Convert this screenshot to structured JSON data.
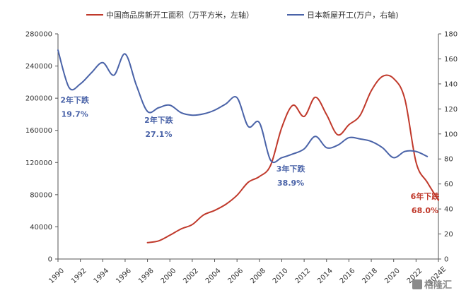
{
  "chart_data": {
    "type": "line",
    "legend": {
      "position": "top",
      "items": [
        {
          "label": "中国商品房新开工面积（万平方米，左轴）",
          "color": "#c0392b"
        },
        {
          "label": "日本新屋开工(万户，右轴)",
          "color": "#4a63a8"
        }
      ]
    },
    "left_axis": {
      "ylim": [
        0,
        280000
      ],
      "ticks": [
        "0",
        "40000",
        "80000",
        "120000",
        "160000",
        "200000",
        "240000",
        "280000"
      ]
    },
    "right_axis": {
      "ylim": [
        0,
        180
      ],
      "ticks": [
        "0",
        "20",
        "40",
        "60",
        "80",
        "100",
        "120",
        "140",
        "160",
        "180"
      ]
    },
    "x_ticks": [
      "1990",
      "1992",
      "1994",
      "1996",
      "1998",
      "2000",
      "2002",
      "2004",
      "2006",
      "2008",
      "2010",
      "2012",
      "2014",
      "2016",
      "2018",
      "2020",
      "2022",
      "2024E"
    ],
    "x_range": [
      1990,
      2024
    ],
    "series": [
      {
        "name": "中国商品房新开工面积（万平方米，左轴）",
        "axis": "left",
        "color": "#c0392b",
        "x": [
          1998,
          1999,
          2000,
          2001,
          2002,
          2003,
          2004,
          2005,
          2006,
          2007,
          2008,
          2009,
          2010,
          2011,
          2012,
          2013,
          2014,
          2015,
          2016,
          2017,
          2018,
          2019,
          2020,
          2021,
          2022,
          2023,
          2024
        ],
        "values": [
          20387,
          22579,
          29583,
          37394,
          42801,
          54708,
          60414,
          68064,
          79253,
          95402,
          102553,
          116422,
          163647,
          191237,
          177334,
          201208,
          179592,
          154454,
          166928,
          178654,
          209342,
          227154,
          224433,
          198895,
          120262,
          95376,
          73000
        ]
      },
      {
        "name": "日本新屋开工(万户，右轴)",
        "axis": "right",
        "color": "#4a63a8",
        "x": [
          1990,
          1991,
          1992,
          1993,
          1994,
          1995,
          1996,
          1997,
          1998,
          1999,
          2000,
          2001,
          2002,
          2003,
          2004,
          2005,
          2006,
          2007,
          2008,
          2009,
          2010,
          2011,
          2012,
          2013,
          2014,
          2015,
          2016,
          2017,
          2018,
          2019,
          2020,
          2021,
          2022,
          2023
        ],
        "values": [
          167,
          137,
          140,
          149,
          157,
          147,
          164,
          139,
          118,
          121,
          123,
          117,
          115,
          116,
          119,
          124,
          129,
          106,
          109,
          79,
          81,
          84,
          88,
          98,
          89,
          91,
          97,
          96,
          94,
          89,
          81,
          86,
          86,
          82
        ]
      }
    ],
    "annotations": [
      {
        "line1": "2年下跌",
        "line2": "19.7%",
        "x": 1991.5,
        "yr": 125,
        "color": "#4a63a8"
      },
      {
        "line1": "2年下跌",
        "line2": "27.1%",
        "x": 1999.0,
        "yr": 109,
        "color": "#4a63a8"
      },
      {
        "line1": "3年下跌",
        "line2": "38.9%",
        "x": 2010.8,
        "yr": 70,
        "color": "#4a63a8"
      },
      {
        "line1": "6年下跌",
        "line2": "68.0%",
        "x": 2022.8,
        "yr": 48,
        "color": "#c0392b"
      }
    ]
  },
  "watermark": {
    "text": "格隆汇"
  }
}
